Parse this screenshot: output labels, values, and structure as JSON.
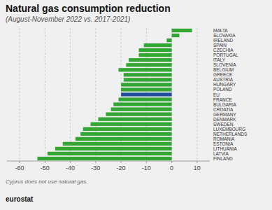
{
  "chart_data": {
    "type": "bar",
    "orientation": "horizontal",
    "title": "Natural gas consumption reduction",
    "subtitle": "(August-November 2022 vs. 2017-2021)",
    "annotations": [
      "Cyprus does not use natural gas.",
      "eurostat"
    ],
    "categories": [
      "MALTA",
      "SLOVAKIA",
      "IRELAND",
      "SPAIN",
      "CZECHIA",
      "PORTUGAL",
      "ITALY",
      "SLOVENIA",
      "BELGIUM",
      "GREECE",
      "AUSTRIA",
      "HUNGARY",
      "POLAND",
      "EU",
      "FRANCE",
      "BULGARIA",
      "CROATIA",
      "GERMANY",
      "DENMARK",
      "SWEDEN",
      "LUXEMBOURG",
      "NETHERLANDS",
      "ROMANIA",
      "ESTONIA",
      "LITHUANIA",
      "LATVIA",
      "FINLAND"
    ],
    "values": [
      8,
      3,
      -2,
      -11,
      -13,
      -13,
      -17,
      -18,
      -21,
      -19,
      -19,
      -20,
      -20,
      -20,
      -21,
      -23,
      -24,
      -26,
      -29,
      -32,
      -35,
      -36,
      -38,
      -43,
      -46,
      -49,
      -53
    ],
    "colors": [
      "#33a532",
      "#33a532",
      "#33a532",
      "#33a532",
      "#33a532",
      "#33a532",
      "#33a532",
      "#33a532",
      "#33a532",
      "#33a532",
      "#33a532",
      "#33a532",
      "#33a532",
      "#1f4e9c",
      "#33a532",
      "#33a532",
      "#33a532",
      "#33a532",
      "#33a532",
      "#33a532",
      "#33a532",
      "#33a532",
      "#33a532",
      "#33a532",
      "#33a532",
      "#33a532",
      "#33a532"
    ],
    "xlim": [
      -65,
      15
    ],
    "xticks": [
      -60,
      -50,
      -40,
      -30,
      -20,
      -10,
      0,
      10
    ],
    "grid": true
  }
}
